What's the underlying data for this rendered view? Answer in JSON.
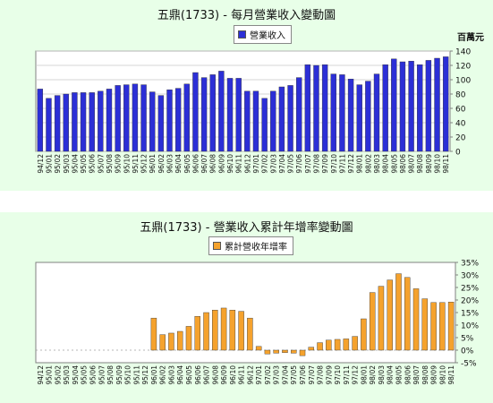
{
  "chart_data": [
    {
      "type": "bar",
      "title": "五鼎(1733) - 每月營業收入變動圖",
      "legend": "營業收入",
      "unit_label": "百萬元",
      "ylim": [
        0,
        140
      ],
      "yticks": [
        0,
        20,
        40,
        60,
        80,
        100,
        120,
        140
      ],
      "grid": true,
      "color": "#2c2fd6",
      "categories": [
        "94/12",
        "95/01",
        "95/02",
        "95/03",
        "95/04",
        "95/05",
        "95/06",
        "95/07",
        "95/08",
        "95/09",
        "95/10",
        "95/11",
        "95/12",
        "96/01",
        "96/02",
        "96/03",
        "96/04",
        "96/05",
        "96/06",
        "96/07",
        "96/08",
        "96/09",
        "96/10",
        "96/11",
        "96/12",
        "97/01",
        "97/02",
        "97/03",
        "97/04",
        "97/05",
        "97/06",
        "97/07",
        "97/08",
        "97/09",
        "97/10",
        "97/11",
        "97/12",
        "98/01",
        "98/02",
        "98/03",
        "98/04",
        "98/05",
        "98/06",
        "98/07",
        "98/08",
        "98/09",
        "98/10",
        "98/11"
      ],
      "values": [
        87,
        74,
        78,
        80,
        82,
        82,
        82,
        84,
        87,
        92,
        93,
        94,
        93,
        83,
        78,
        86,
        88,
        94,
        110,
        103,
        107,
        112,
        102,
        102,
        84,
        84,
        74,
        84,
        90,
        92,
        103,
        121,
        120,
        121,
        108,
        107,
        101,
        93,
        98,
        108,
        121,
        129,
        125,
        126,
        121,
        127,
        130,
        132
      ]
    },
    {
      "type": "bar",
      "title": "五鼎(1733) -  營業收入累計年增率變動圖",
      "legend": "累計營收年增率",
      "ylim": [
        -5,
        35
      ],
      "yticks": [
        "-5%",
        "0%",
        "5%",
        "10%",
        "15%",
        "20%",
        "25%",
        "30%",
        "35%"
      ],
      "grid": false,
      "color": "#f5a22d",
      "categories": [
        "94/12",
        "95/01",
        "95/02",
        "95/03",
        "95/04",
        "95/05",
        "95/06",
        "95/07",
        "95/08",
        "95/09",
        "95/10",
        "95/11",
        "95/12",
        "96/01",
        "96/02",
        "96/03",
        "96/04",
        "96/05",
        "96/06",
        "96/07",
        "96/08",
        "96/09",
        "96/10",
        "96/11",
        "96/12",
        "97/01",
        "97/02",
        "97/03",
        "97/04",
        "97/05",
        "97/06",
        "97/07",
        "97/08",
        "97/09",
        "97/10",
        "97/11",
        "97/12",
        "98/01",
        "98/02",
        "98/03",
        "98/04",
        "98/05",
        "98/06",
        "98/07",
        "98/08",
        "98/09",
        "98/10",
        "98/11"
      ],
      "values": [
        0,
        0,
        0,
        0,
        0,
        0,
        0,
        0,
        0,
        0,
        0,
        0,
        0,
        12.8,
        6.2,
        6.8,
        7.5,
        9.5,
        13.5,
        15,
        16,
        16.8,
        16,
        15.5,
        12.8,
        1.5,
        -1.5,
        -1.2,
        -1,
        -1.2,
        -2.2,
        1.2,
        3,
        4,
        4.3,
        4.5,
        5.5,
        12.5,
        23,
        25.5,
        28,
        30.5,
        29,
        24.5,
        20.5,
        19,
        19,
        19.2
      ]
    }
  ]
}
